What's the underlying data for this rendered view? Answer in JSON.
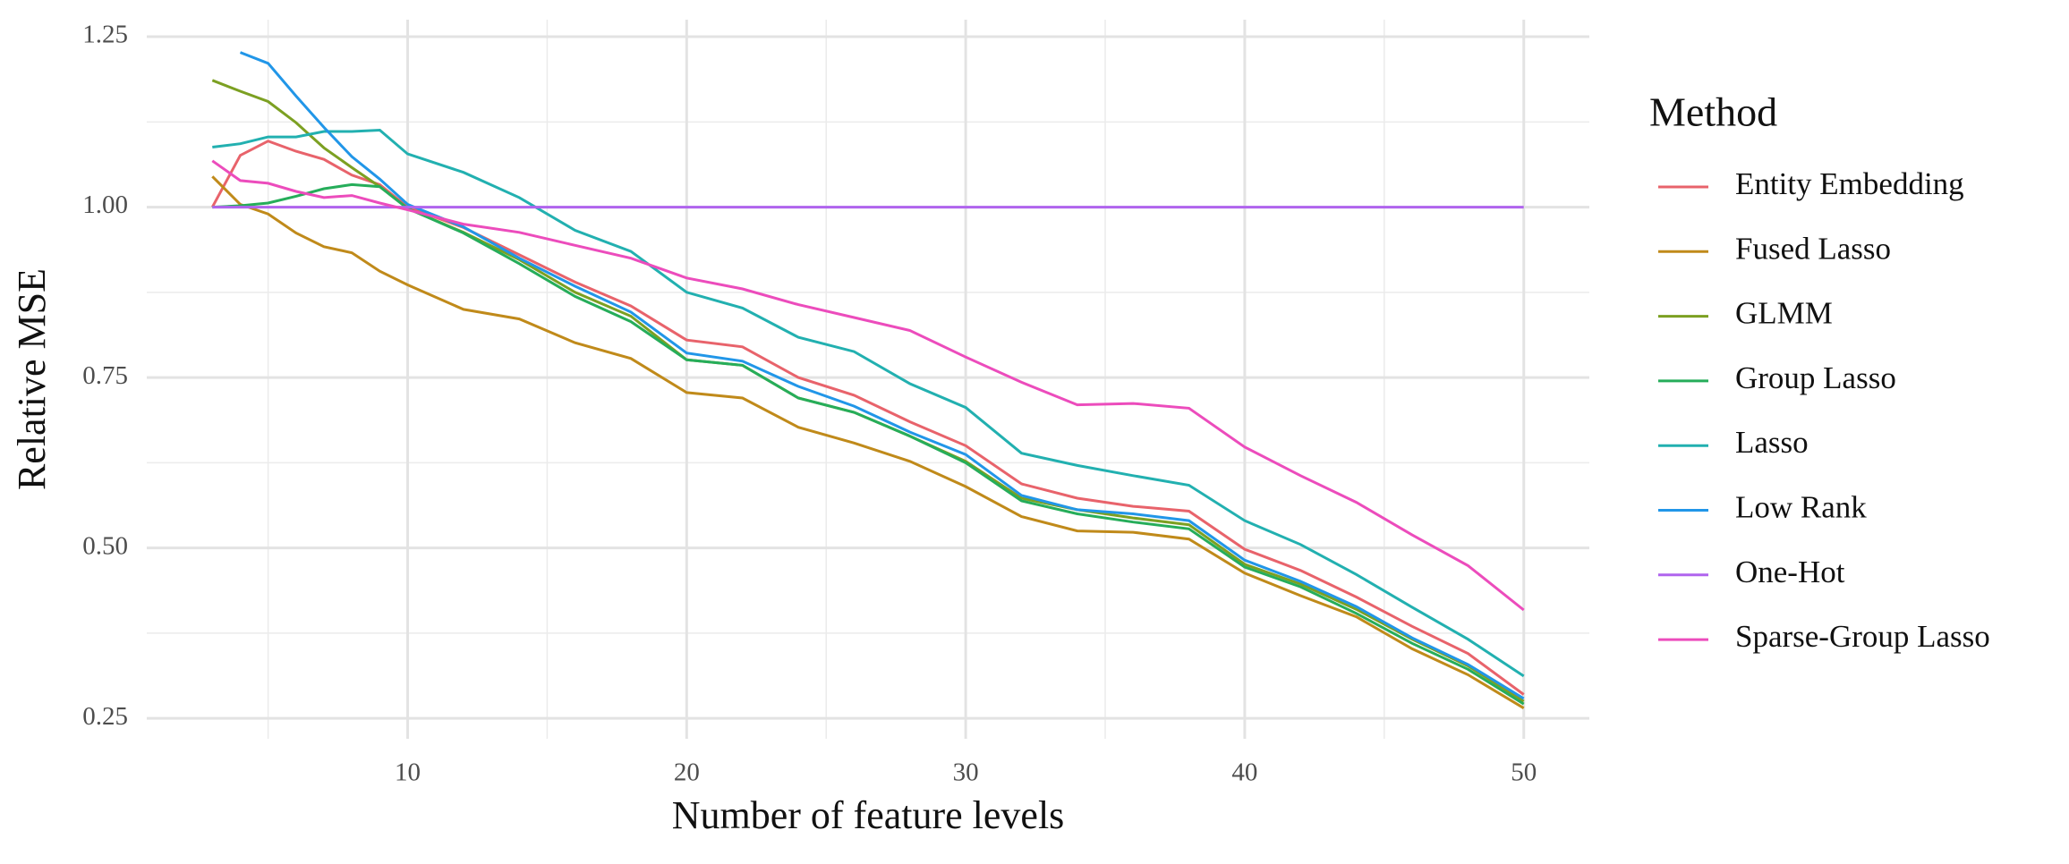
{
  "chart_data": {
    "type": "line",
    "xlabel": "Number of feature levels",
    "ylabel": "Relative MSE",
    "legend_title": "Method",
    "x": [
      3,
      4,
      5,
      6,
      7,
      8,
      9,
      10,
      12,
      14,
      16,
      18,
      20,
      22,
      24,
      26,
      28,
      30,
      32,
      34,
      36,
      38,
      40,
      42,
      44,
      46,
      48,
      50
    ],
    "xlim": [
      0.65,
      52.35
    ],
    "xticks": [
      10,
      20,
      30,
      40,
      50
    ],
    "ylim": [
      0.22,
      1.275
    ],
    "yticks": [
      0.25,
      {
        "value": 0.5,
        "label": "0.50"
      },
      0.75,
      {
        "value": 1,
        "label": "1.00"
      },
      1.25
    ],
    "grid": true,
    "legend": "right",
    "series": [
      {
        "name": "Entity Embedding",
        "color": "#e8636b",
        "values": [
          1.0,
          1.076,
          1.097,
          1.082,
          1.07,
          1.047,
          1.033,
          1.0,
          0.97,
          0.93,
          0.89,
          0.855,
          0.805,
          0.795,
          0.75,
          0.724,
          0.685,
          0.65,
          0.594,
          0.573,
          0.561,
          0.554,
          0.498,
          0.467,
          0.428,
          0.385,
          0.345,
          0.285
        ]
      },
      {
        "name": "Fused Lasso",
        "color": "#c08a1a",
        "values": [
          1.045,
          1.004,
          0.99,
          0.962,
          0.942,
          0.933,
          0.906,
          0.886,
          0.85,
          0.836,
          0.801,
          0.778,
          0.728,
          0.72,
          0.677,
          0.654,
          0.627,
          0.59,
          0.546,
          0.525,
          0.523,
          0.513,
          0.463,
          0.43,
          0.399,
          0.352,
          0.314,
          0.265
        ]
      },
      {
        "name": "GLMM",
        "color": "#7ca022",
        "values": [
          1.186,
          1.17,
          1.155,
          1.124,
          1.087,
          1.058,
          1.03,
          0.998,
          0.963,
          0.923,
          0.875,
          0.84,
          0.776,
          0.768,
          0.72,
          0.699,
          0.664,
          0.627,
          0.573,
          0.556,
          0.544,
          0.534,
          0.476,
          0.447,
          0.41,
          0.366,
          0.327,
          0.275
        ]
      },
      {
        "name": "Group Lasso",
        "color": "#26ad5a",
        "values": [
          1.0,
          1.002,
          1.006,
          1.016,
          1.027,
          1.033,
          1.03,
          0.998,
          0.962,
          0.917,
          0.869,
          0.832,
          0.776,
          0.768,
          0.72,
          0.699,
          0.664,
          0.625,
          0.569,
          0.55,
          0.538,
          0.528,
          0.472,
          0.443,
          0.404,
          0.36,
          0.322,
          0.271
        ]
      },
      {
        "name": "Lasso",
        "color": "#22b0b0",
        "values": [
          1.088,
          1.093,
          1.103,
          1.103,
          1.111,
          1.111,
          1.113,
          1.078,
          1.051,
          1.014,
          0.966,
          0.935,
          0.875,
          0.852,
          0.809,
          0.788,
          0.741,
          0.706,
          0.639,
          0.621,
          0.606,
          0.592,
          0.54,
          0.505,
          0.461,
          0.413,
          0.366,
          0.312
        ]
      },
      {
        "name": "Low Rank",
        "color": "#2196e8",
        "values": [
          null,
          1.227,
          1.211,
          1.163,
          1.117,
          1.074,
          1.041,
          1.004,
          0.971,
          0.925,
          0.884,
          0.846,
          0.786,
          0.774,
          0.737,
          0.708,
          0.67,
          0.637,
          0.577,
          0.556,
          0.55,
          0.54,
          0.482,
          0.451,
          0.414,
          0.368,
          0.329,
          0.279
        ]
      },
      {
        "name": "One-Hot",
        "color": "#b064ee",
        "values": [
          1,
          1,
          1,
          1,
          1,
          1,
          1,
          1,
          1,
          1,
          1,
          1,
          1,
          1,
          1,
          1,
          1,
          1,
          1,
          1,
          1,
          1,
          1,
          1,
          1,
          1,
          1,
          1
        ]
      },
      {
        "name": "Sparse-Group Lasso",
        "color": "#ec4cbc",
        "values": [
          1.068,
          1.039,
          1.035,
          1.023,
          1.014,
          1.017,
          1.006,
          0.996,
          0.975,
          0.963,
          0.944,
          0.925,
          0.896,
          0.88,
          0.857,
          0.838,
          0.819,
          0.78,
          0.743,
          0.71,
          0.712,
          0.705,
          0.648,
          0.606,
          0.567,
          0.519,
          0.474,
          0.409
        ]
      }
    ]
  }
}
